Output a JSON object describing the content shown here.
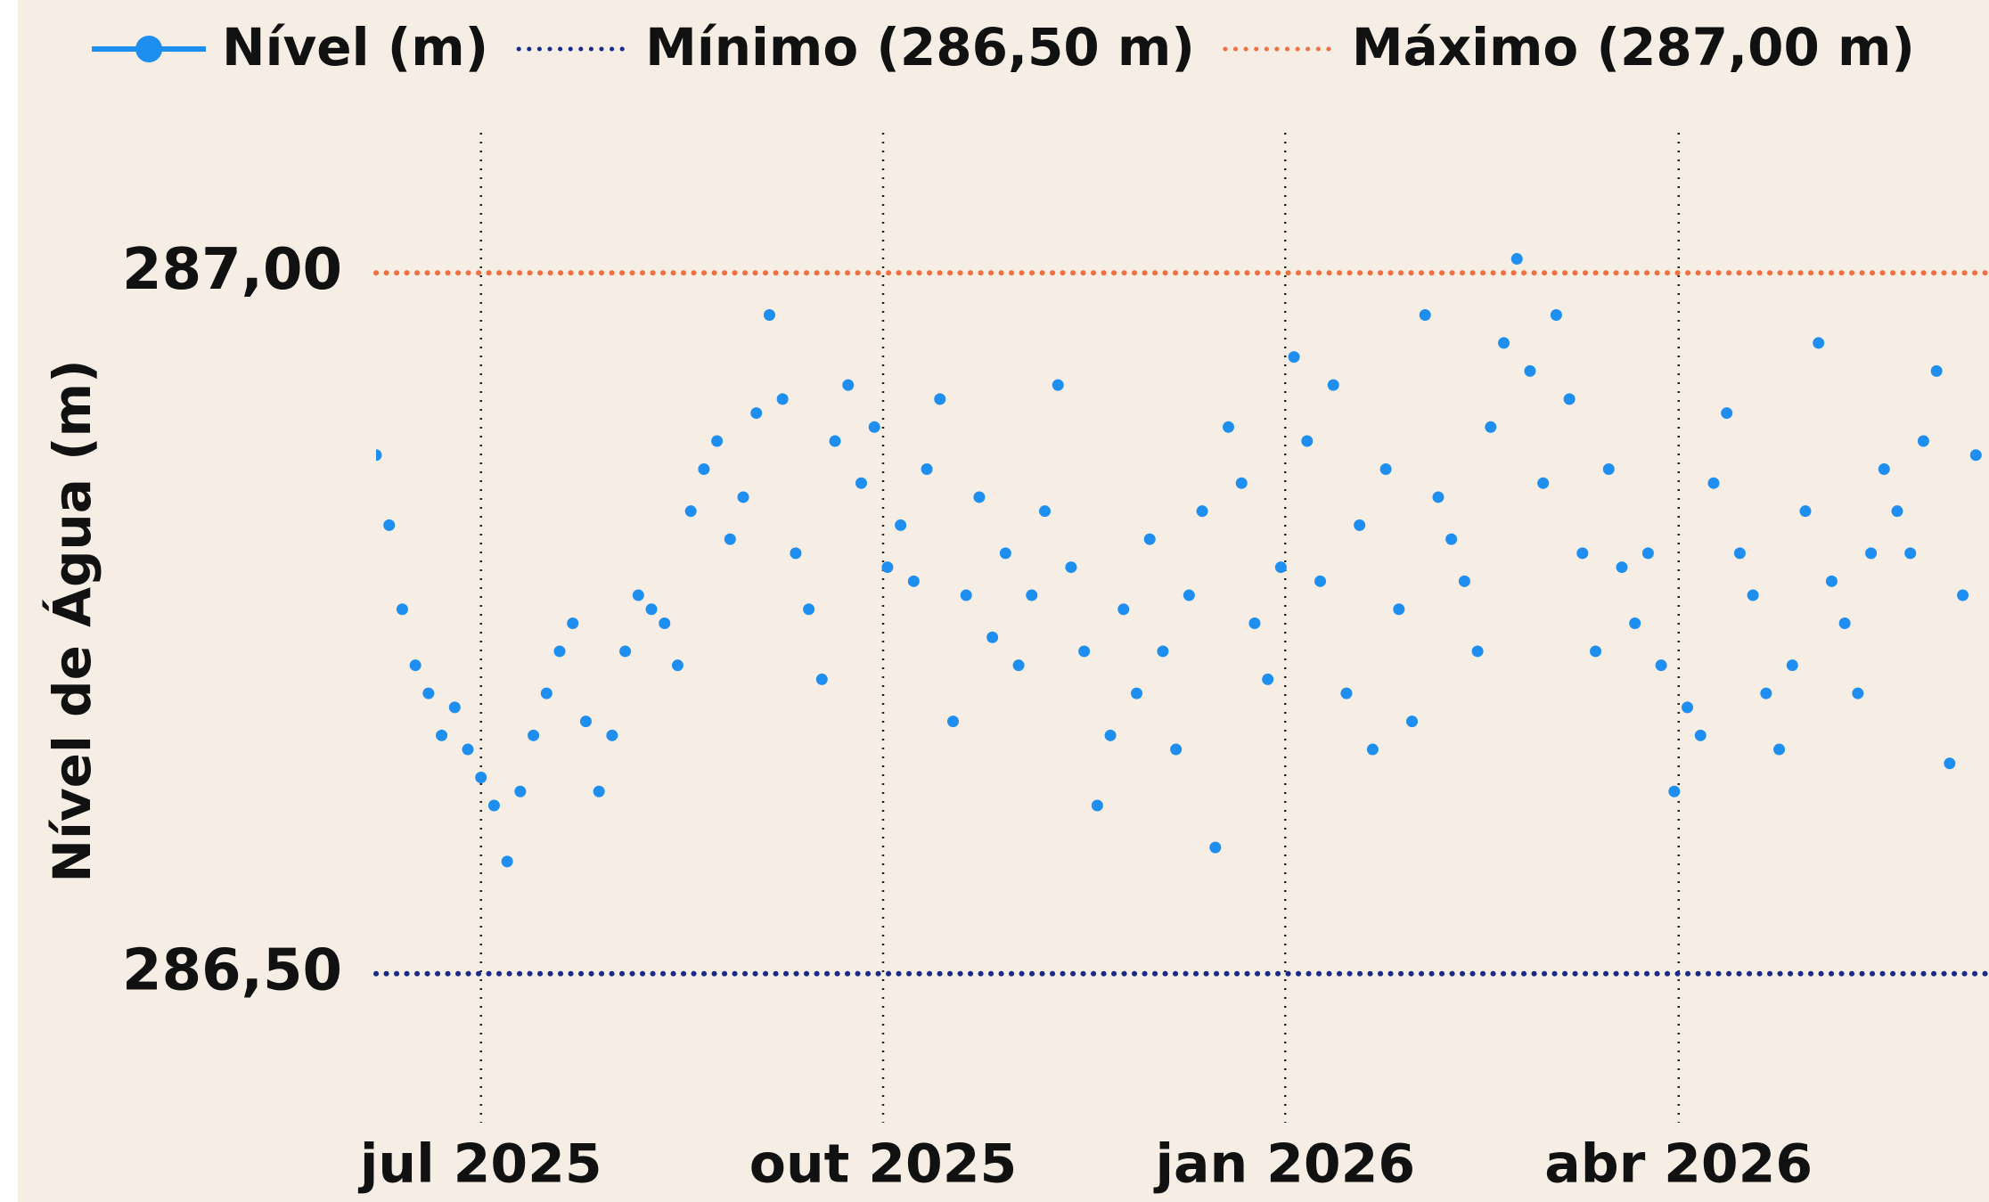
{
  "chart_data": {
    "type": "scatter",
    "y_label": "Nível de Água (m)",
    "x": [
      -24,
      -21,
      -18,
      -15,
      -12,
      -9,
      -6,
      -3,
      0,
      3,
      6,
      9,
      12,
      15,
      18,
      21,
      24,
      27,
      30,
      33,
      36,
      39,
      42,
      45,
      48,
      51,
      54,
      57,
      60,
      63,
      66,
      69,
      72,
      75,
      78,
      81,
      84,
      87,
      90,
      93,
      96,
      99,
      102,
      105,
      108,
      111,
      114,
      117,
      120,
      123,
      126,
      129,
      132,
      135,
      138,
      141,
      144,
      147,
      150,
      153,
      156,
      159,
      162,
      165,
      168,
      171,
      174,
      177,
      180,
      183,
      186,
      189,
      192,
      195,
      198,
      201,
      204,
      207,
      210,
      213,
      216,
      219,
      222,
      225,
      228,
      231,
      234,
      237,
      240,
      243,
      246,
      249,
      252,
      255,
      258,
      261,
      264,
      267,
      270,
      273,
      276,
      279,
      282,
      285,
      288,
      291,
      294,
      297,
      300,
      303,
      306,
      309,
      312,
      315,
      318,
      321,
      324,
      327,
      330,
      333,
      336,
      339,
      342
    ],
    "series": [
      {
        "name": "Nível (m)",
        "color": "#1e8ff0",
        "values": [
          286.87,
          286.82,
          286.76,
          286.72,
          286.7,
          286.67,
          286.69,
          286.66,
          286.64,
          286.62,
          286.58,
          286.63,
          286.67,
          286.7,
          286.73,
          286.75,
          286.68,
          286.63,
          286.67,
          286.73,
          286.77,
          286.76,
          286.75,
          286.72,
          286.83,
          286.86,
          286.88,
          286.81,
          286.84,
          286.9,
          286.97,
          286.91,
          286.8,
          286.76,
          286.71,
          286.88,
          286.92,
          286.85,
          286.89,
          286.79,
          286.82,
          286.78,
          286.86,
          286.91,
          286.68,
          286.77,
          286.84,
          286.74,
          286.8,
          286.72,
          286.77,
          286.83,
          286.92,
          286.79,
          286.73,
          286.62,
          286.67,
          286.76,
          286.7,
          286.81,
          286.73,
          286.66,
          286.77,
          286.83,
          286.59,
          286.89,
          286.85,
          286.75,
          286.71,
          286.79,
          286.94,
          286.88,
          286.78,
          286.92,
          286.7,
          286.82,
          286.66,
          286.86,
          286.76,
          286.68,
          286.97,
          286.84,
          286.81,
          286.78,
          286.73,
          286.89,
          286.95,
          287.01,
          286.93,
          286.85,
          286.97,
          286.91,
          286.8,
          286.73,
          286.86,
          286.79,
          286.75,
          286.8,
          286.72,
          286.63,
          286.69,
          286.67,
          286.85,
          286.9,
          286.8,
          286.77,
          286.7,
          286.66,
          286.72,
          286.83,
          286.95,
          286.78,
          286.75,
          286.7,
          286.8,
          286.86,
          286.83,
          286.8,
          286.88,
          286.93,
          286.65,
          286.77,
          286.87
        ]
      }
    ],
    "reference_lines": [
      {
        "name": "Mínimo (286,50 m)",
        "value": 286.5,
        "color": "#1a2a8c"
      },
      {
        "name": "Máximo (287,00 m)",
        "value": 287.0,
        "color": "#f07040"
      }
    ],
    "xlim": [
      -24,
      345
    ],
    "xticks": [
      {
        "value": 0,
        "label": "jul 2025"
      },
      {
        "value": 92,
        "label": "out 2025"
      },
      {
        "value": 184,
        "label": "jan 2026"
      },
      {
        "value": 274,
        "label": "abr 2026"
      }
    ],
    "ylim": [
      286.4,
      287.1
    ],
    "yticks": [
      {
        "value": 286.5,
        "label": "286,50"
      },
      {
        "value": 287.0,
        "label": "287,00"
      }
    ],
    "x_grid": true
  }
}
